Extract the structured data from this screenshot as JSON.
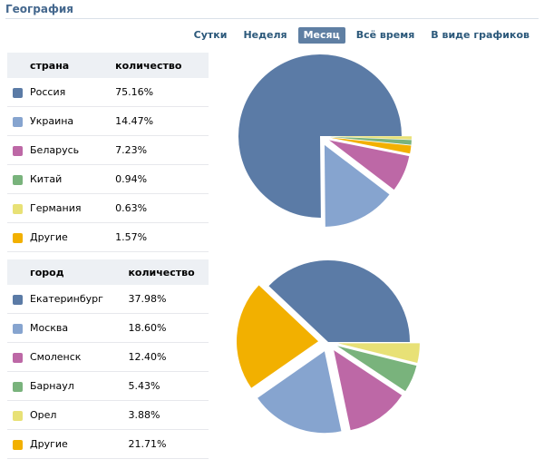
{
  "header": {
    "title": "География"
  },
  "tabs": [
    {
      "label": "Сутки",
      "active": false
    },
    {
      "label": "Неделя",
      "active": false
    },
    {
      "label": "Месяц",
      "active": true
    },
    {
      "label": "Всё время",
      "active": false
    },
    {
      "label": "В виде графиков",
      "active": false
    }
  ],
  "countries": {
    "col1": "страна",
    "col2": "количество",
    "rows": [
      {
        "name": "Россия",
        "value": "75.16%",
        "color": "#5b7ba6"
      },
      {
        "name": "Украина",
        "value": "14.47%",
        "color": "#86a4cf"
      },
      {
        "name": "Беларусь",
        "value": "7.23%",
        "color": "#bd68a6"
      },
      {
        "name": "Китай",
        "value": "0.94%",
        "color": "#79b37c"
      },
      {
        "name": "Германия",
        "value": "0.63%",
        "color": "#e8e176"
      },
      {
        "name": "Другие",
        "value": "1.57%",
        "color": "#f2b000"
      }
    ]
  },
  "cities": {
    "col1": "город",
    "col2": "количество",
    "rows": [
      {
        "name": "Екатеринбург",
        "value": "37.98%",
        "color": "#5b7ba6"
      },
      {
        "name": "Москва",
        "value": "18.60%",
        "color": "#86a4cf"
      },
      {
        "name": "Смоленск",
        "value": "12.40%",
        "color": "#bd68a6"
      },
      {
        "name": "Барнаул",
        "value": "5.43%",
        "color": "#79b37c"
      },
      {
        "name": "Орел",
        "value": "3.88%",
        "color": "#e8e176"
      },
      {
        "name": "Другие",
        "value": "21.71%",
        "color": "#f2b000"
      }
    ]
  },
  "chart_data": [
    {
      "type": "pie",
      "title": "страна",
      "slices": [
        {
          "label": "Россия",
          "value": 75.16,
          "color": "#5b7ba6"
        },
        {
          "label": "Украина",
          "value": 14.47,
          "color": "#86a4cf"
        },
        {
          "label": "Беларусь",
          "value": 7.23,
          "color": "#bd68a6"
        },
        {
          "label": "Другие",
          "value": 1.57,
          "color": "#f2b000"
        },
        {
          "label": "Китай",
          "value": 0.94,
          "color": "#79b37c"
        },
        {
          "label": "Германия",
          "value": 0.63,
          "color": "#e8e176"
        }
      ]
    },
    {
      "type": "pie",
      "title": "город",
      "slices": [
        {
          "label": "Екатеринбург",
          "value": 37.98,
          "color": "#5b7ba6"
        },
        {
          "label": "Другие",
          "value": 21.71,
          "color": "#f2b000"
        },
        {
          "label": "Москва",
          "value": 18.6,
          "color": "#86a4cf"
        },
        {
          "label": "Смоленск",
          "value": 12.4,
          "color": "#bd68a6"
        },
        {
          "label": "Барнаул",
          "value": 5.43,
          "color": "#79b37c"
        },
        {
          "label": "Орел",
          "value": 3.88,
          "color": "#e8e176"
        }
      ]
    }
  ]
}
